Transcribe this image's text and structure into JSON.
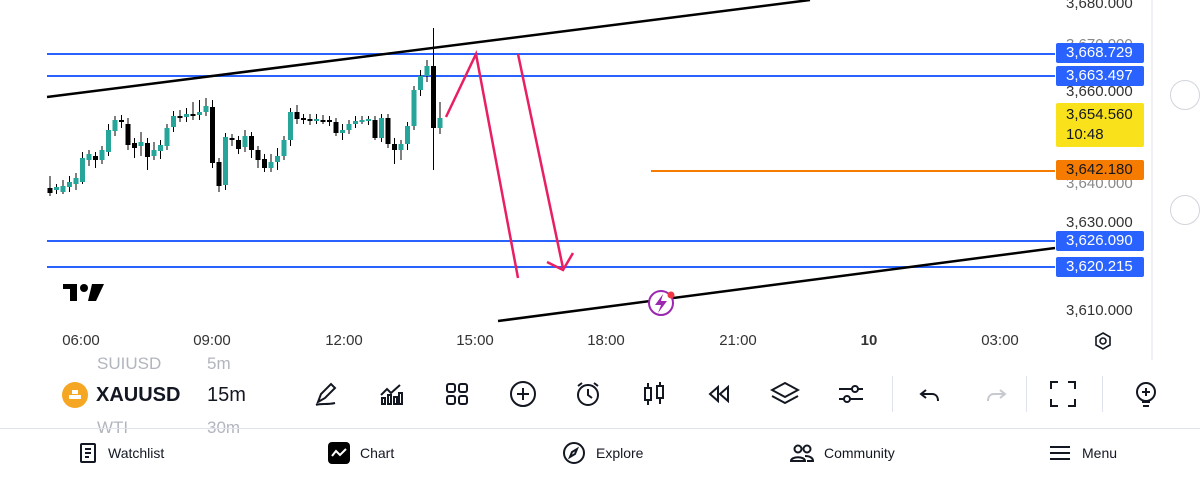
{
  "chart": {
    "symbol": "XAUUSD",
    "interval": "15m",
    "symbol_above": "SUIUSD",
    "interval_above": "5m",
    "symbol_below": "WTI",
    "interval_below": "30m",
    "price_axis": {
      "labels": [
        "3,680.000",
        "3,670.000",
        "3,660.000",
        "3,640.000",
        "3,630.000",
        "3,610.000"
      ]
    },
    "price_tags": {
      "line1": "3,668.729",
      "line2": "3,663.497",
      "current_price": "3,654.560",
      "countdown": "10:48",
      "orange_line": "3,642.180",
      "line3": "3,626.090",
      "line4": "3,620.215"
    },
    "time_axis": [
      "06:00",
      "09:00",
      "12:00",
      "15:00",
      "18:00",
      "21:00",
      "10",
      "03:00"
    ],
    "colors": {
      "up": "#26a69a",
      "down": "#000000",
      "level_line": "#2962ff",
      "orange_line": "#f57c00",
      "arrow": "#e91e63",
      "current_price": "#f9e21c"
    }
  },
  "toolbar": {
    "icons": [
      "pencil-icon",
      "indicators-icon",
      "layout-grid-icon",
      "plus-circle-icon",
      "alarm-icon",
      "candlestick-icon",
      "rewind-icon",
      "layers-icon",
      "settings-sliders-icon",
      "undo-icon",
      "redo-icon",
      "fullscreen-icon",
      "lightbulb-icon"
    ]
  },
  "nav": {
    "watchlist": "Watchlist",
    "chart": "Chart",
    "explore": "Explore",
    "community": "Community",
    "menu": "Menu"
  }
}
